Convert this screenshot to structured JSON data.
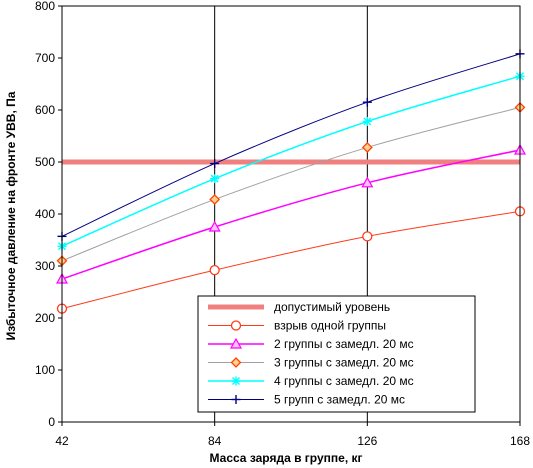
{
  "chart_data": {
    "type": "line",
    "xlabel": "Масса заряда в группе, кг",
    "ylabel": "Избыточное давление на фронте УВВ, Па",
    "x": [
      42,
      84,
      126,
      168
    ],
    "x_tick_labels": [
      "42",
      "84",
      "126",
      "168"
    ],
    "xlim": [
      42,
      168
    ],
    "ylim": [
      0,
      800
    ],
    "y_ticks": [
      0,
      100,
      200,
      300,
      400,
      500,
      600,
      700,
      800
    ],
    "grid": "vertical lines at x ticks",
    "legend_position": "bottom-right",
    "series": [
      {
        "name": "допустимый уровень",
        "values": [
          500,
          500,
          500,
          500
        ],
        "color": "#f08080",
        "marker": "none",
        "line_width": 5
      },
      {
        "name": "взрыв одной группы",
        "values": [
          218,
          292,
          357,
          405
        ],
        "color": "#ff3b1a",
        "marker": "circle",
        "line_width": 1
      },
      {
        "name": "2 группы с замедл. 20 мс",
        "values": [
          275,
          375,
          460,
          523
        ],
        "color": "#ff00ff",
        "marker": "triangle",
        "line_width": 1.5
      },
      {
        "name": "3 группы с замедл. 20 мс",
        "values": [
          310,
          428,
          528,
          605
        ],
        "color": "#ff4500",
        "line_color": "#a0a0a0",
        "marker": "diamond",
        "line_width": 1
      },
      {
        "name": "4 группы с замедл. 20 мс",
        "values": [
          338,
          468,
          578,
          665
        ],
        "color": "#00ffff",
        "marker": "asterisk",
        "line_width": 1.5
      },
      {
        "name": "5 групп с замедл. 20 мс",
        "values": [
          357,
          497,
          615,
          708
        ],
        "color": "#000080",
        "marker": "plus",
        "line_width": 1
      }
    ]
  }
}
